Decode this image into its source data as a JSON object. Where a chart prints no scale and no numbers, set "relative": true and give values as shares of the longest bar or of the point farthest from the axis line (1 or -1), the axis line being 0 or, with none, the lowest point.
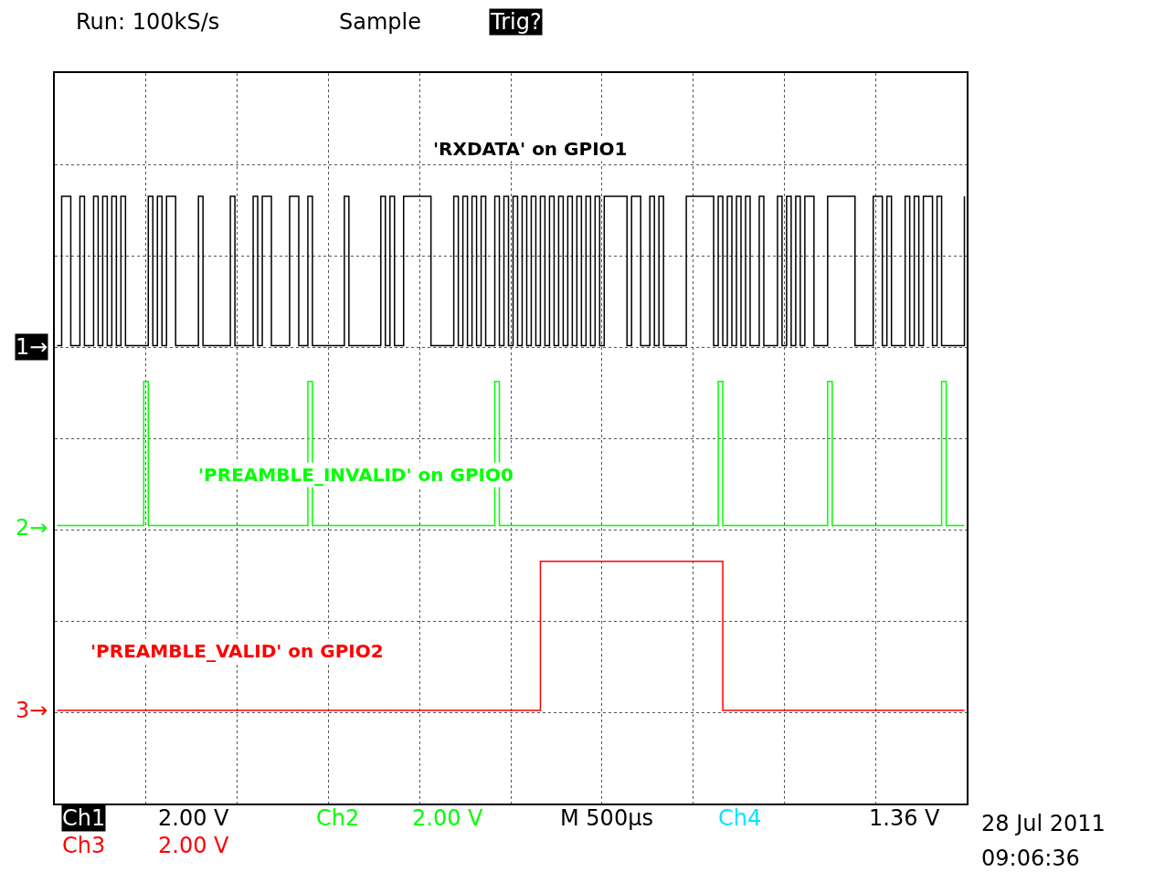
{
  "chart_data": {
    "type": "step",
    "relative": true,
    "grid": true,
    "legend": false,
    "categories": [
      null,
      null,
      null,
      null,
      null,
      null,
      null,
      null,
      null,
      null,
      null,
      null,
      null,
      null,
      null,
      null,
      null,
      null,
      null,
      null,
      null,
      null,
      null,
      null,
      null,
      null,
      null,
      null,
      null,
      null,
      null,
      null,
      null,
      null,
      null,
      null,
      null,
      null,
      null,
      null,
      null,
      null,
      null,
      null,
      null,
      null,
      null,
      null,
      null,
      null,
      null,
      null,
      null,
      null,
      null,
      null,
      null,
      null,
      null,
      null,
      null,
      null,
      null,
      null,
      null,
      null,
      null,
      null,
      null,
      null,
      null,
      null,
      null,
      null,
      null,
      null,
      null,
      null,
      null,
      null,
      null,
      null,
      null,
      null,
      null,
      null,
      null,
      null,
      null,
      null,
      null,
      null,
      null,
      null,
      null,
      null,
      null,
      null,
      null,
      null,
      null,
      null,
      null,
      null,
      null,
      null,
      null,
      null,
      null,
      null,
      null,
      null,
      null,
      null,
      null,
      null,
      null,
      null,
      null,
      null,
      null,
      null,
      null,
      null,
      null,
      null,
      null,
      null,
      null,
      null,
      null,
      null,
      null,
      null,
      null,
      null,
      null,
      null,
      null,
      null,
      null,
      null,
      null,
      null,
      null,
      null,
      null,
      null,
      null,
      null,
      null,
      null,
      null,
      null,
      null,
      null,
      null,
      null,
      null,
      null,
      null,
      null,
      null,
      null,
      null,
      null,
      null,
      null,
      null,
      null,
      null,
      null,
      null,
      null,
      null,
      null,
      null,
      null,
      null,
      null,
      null,
      null,
      null,
      null,
      null,
      null,
      null,
      null,
      null,
      null,
      null,
      null,
      null,
      null,
      null,
      null,
      null,
      null,
      null,
      null
    ],
    "series": [
      {
        "name": "'RXDATA' on GPIO1",
        "color": "#000000",
        "values": [
          0.71,
          1,
          1,
          0.71,
          0.71,
          1,
          0.71,
          0.71,
          1,
          0.71,
          1,
          0.71,
          1,
          0.71,
          1,
          0.71,
          0.71,
          0.71,
          0.71,
          0.71,
          1,
          0.71,
          1,
          0.71,
          1,
          1,
          0.71,
          0.71,
          0.71,
          0.71,
          0.71,
          1,
          0.71,
          0.71,
          0.71,
          0.71,
          0.71,
          0.71,
          1,
          0.71,
          0.71,
          0.71,
          0.71,
          1,
          0.71,
          1,
          1,
          0.71,
          0.71,
          0.71,
          0.71,
          1,
          1,
          0.71,
          0.71,
          1,
          0.71,
          0.71,
          0.71,
          0.71,
          0.71,
          0.71,
          0.71,
          1,
          0.71,
          0.71,
          0.71,
          0.71,
          0.71,
          0.71,
          0.71,
          1,
          0.71,
          1,
          0.71,
          0.71,
          1,
          1,
          1,
          1,
          1,
          1,
          0.71,
          0.71,
          0.71,
          0.71,
          0.71,
          1,
          0.71,
          1,
          0.71,
          1,
          0.71,
          1,
          0.71,
          0.71,
          1,
          0.71,
          1,
          0.71,
          1,
          0.71,
          1,
          0.71,
          1,
          0.71,
          1,
          0.71,
          1,
          0.71,
          1,
          0.71,
          1,
          0.71,
          1,
          0.71,
          1,
          0.71,
          1,
          0.71,
          1,
          1,
          1,
          1,
          1,
          0.71,
          1,
          1,
          0.71,
          0.71,
          1,
          0.71,
          1,
          0.71,
          0.71,
          0.71,
          0.71,
          0.71,
          1,
          1,
          1,
          1,
          1,
          1,
          0.71,
          1,
          0.71,
          1,
          0.71,
          1,
          0.71,
          1,
          0.71,
          0.71,
          1,
          0.71,
          0.71,
          0.71,
          1,
          0.71,
          1,
          0.71,
          1,
          0.71,
          1,
          1,
          0.71,
          0.71,
          0.71,
          1,
          1,
          1,
          1,
          1,
          1,
          0.71,
          0.71,
          0.71,
          0.71,
          1,
          1,
          0.71,
          1,
          0.71,
          0.71,
          0.71,
          1,
          0.71,
          1,
          0.71,
          1,
          1,
          0.71,
          1,
          0.71,
          0.71,
          0.71,
          0.71,
          0.71,
          1
        ]
      },
      {
        "name": "'PREAMBLE_INVALID' on GPIO0",
        "color": "#00ff00",
        "values": [
          0.36,
          0.36,
          0.36,
          0.36,
          0.36,
          0.36,
          0.36,
          0.36,
          0.36,
          0.36,
          0.36,
          0.36,
          0.36,
          0.36,
          0.36,
          0.36,
          0.36,
          0.36,
          0.36,
          0.64,
          0.36,
          0.36,
          0.36,
          0.36,
          0.36,
          0.36,
          0.36,
          0.36,
          0.36,
          0.36,
          0.36,
          0.36,
          0.36,
          0.36,
          0.36,
          0.36,
          0.36,
          0.36,
          0.36,
          0.36,
          0.36,
          0.36,
          0.36,
          0.36,
          0.36,
          0.36,
          0.36,
          0.36,
          0.36,
          0.36,
          0.36,
          0.36,
          0.36,
          0.36,
          0.36,
          0.64,
          0.36,
          0.36,
          0.36,
          0.36,
          0.36,
          0.36,
          0.36,
          0.36,
          0.36,
          0.36,
          0.36,
          0.36,
          0.36,
          0.36,
          0.36,
          0.36,
          0.36,
          0.36,
          0.36,
          0.36,
          0.36,
          0.36,
          0.36,
          0.36,
          0.36,
          0.36,
          0.36,
          0.36,
          0.36,
          0.36,
          0.36,
          0.36,
          0.36,
          0.36,
          0.36,
          0.36,
          0.36,
          0.36,
          0.36,
          0.36,
          0.64,
          0.36,
          0.36,
          0.36,
          0.36,
          0.36,
          0.36,
          0.36,
          0.36,
          0.36,
          0.36,
          0.36,
          0.36,
          0.36,
          0.36,
          0.36,
          0.36,
          0.36,
          0.36,
          0.36,
          0.36,
          0.36,
          0.36,
          0.36,
          0.36,
          0.36,
          0.36,
          0.36,
          0.36,
          0.36,
          0.36,
          0.36,
          0.36,
          0.36,
          0.36,
          0.36,
          0.36,
          0.36,
          0.36,
          0.36,
          0.36,
          0.36,
          0.36,
          0.36,
          0.36,
          0.36,
          0.36,
          0.36,
          0.36,
          0.64,
          0.36,
          0.36,
          0.36,
          0.36,
          0.36,
          0.36,
          0.36,
          0.36,
          0.36,
          0.36,
          0.36,
          0.36,
          0.36,
          0.36,
          0.36,
          0.36,
          0.36,
          0.36,
          0.36,
          0.36,
          0.36,
          0.36,
          0.36,
          0.64,
          0.36,
          0.36,
          0.36,
          0.36,
          0.36,
          0.36,
          0.36,
          0.36,
          0.36,
          0.36,
          0.36,
          0.36,
          0.36,
          0.36,
          0.36,
          0.36,
          0.36,
          0.36,
          0.36,
          0.36,
          0.36,
          0.36,
          0.36,
          0.36,
          0.64,
          0.36,
          0.36,
          0.36,
          0.36,
          0.36
        ]
      },
      {
        "name": "'PREAMBLE_VALID' on GPIO2",
        "color": "#ff0000",
        "values": [
          0,
          0,
          0,
          0,
          0,
          0,
          0,
          0,
          0,
          0,
          0,
          0,
          0,
          0,
          0,
          0,
          0,
          0,
          0,
          0,
          0,
          0,
          0,
          0,
          0,
          0,
          0,
          0,
          0,
          0,
          0,
          0,
          0,
          0,
          0,
          0,
          0,
          0,
          0,
          0,
          0,
          0,
          0,
          0,
          0,
          0,
          0,
          0,
          0,
          0,
          0,
          0,
          0,
          0,
          0,
          0,
          0,
          0,
          0,
          0,
          0,
          0,
          0,
          0,
          0,
          0,
          0,
          0,
          0,
          0,
          0,
          0,
          0,
          0,
          0,
          0,
          0,
          0,
          0,
          0,
          0,
          0,
          0,
          0,
          0,
          0,
          0,
          0,
          0,
          0,
          0,
          0,
          0,
          0,
          0,
          0,
          0,
          0,
          0,
          0,
          0,
          0,
          0,
          0,
          0,
          0,
          0.29,
          0.29,
          0.29,
          0.29,
          0.29,
          0.29,
          0.29,
          0.29,
          0.29,
          0.29,
          0.29,
          0.29,
          0.29,
          0.29,
          0.29,
          0.29,
          0.29,
          0.29,
          0.29,
          0.29,
          0.29,
          0.29,
          0.29,
          0.29,
          0.29,
          0.29,
          0.29,
          0.29,
          0.29,
          0.29,
          0.29,
          0.29,
          0.29,
          0.29,
          0.29,
          0.29,
          0.29,
          0.29,
          0.29,
          0.29,
          0,
          0,
          0,
          0,
          0,
          0,
          0,
          0,
          0,
          0,
          0,
          0,
          0,
          0,
          0,
          0,
          0,
          0,
          0,
          0,
          0,
          0,
          0,
          0,
          0,
          0,
          0,
          0,
          0,
          0,
          0,
          0,
          0,
          0,
          0,
          0,
          0,
          0,
          0,
          0,
          0,
          0,
          0,
          0,
          0,
          0,
          0,
          0,
          0,
          0,
          0,
          0,
          0,
          0
        ]
      }
    ],
    "annotations": [
      "Run: 100kS/s",
      "Sample",
      "Trig?",
      "Ch1",
      "2.00 V",
      "Ch2",
      "2.00 V",
      "M 500µs",
      "Ch4",
      "1.36 V",
      "Ch3",
      "2.00 V",
      "28 Jul 2011",
      "09:06:36",
      "1→",
      "2→",
      "3→"
    ]
  }
}
